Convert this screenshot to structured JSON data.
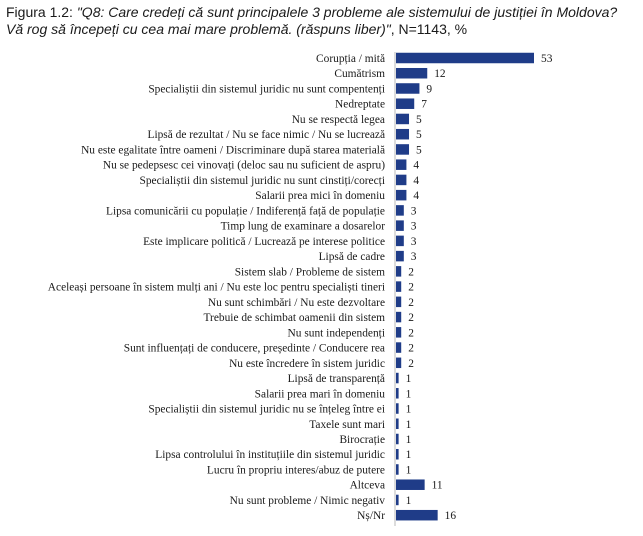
{
  "figure": {
    "label": "Figura 1.2:",
    "question": "\"Q8: Care credeți că sunt principalele 3 probleme ale sistemului de justiției în Moldova? Vă rog să începeți cu cea mai mare problemă. (răspuns liber)\"",
    "suffix": ", N=1143, %"
  },
  "chart_data": {
    "type": "bar",
    "orientation": "horizontal",
    "title": "",
    "xlabel": "",
    "ylabel": "",
    "xlim": [
      0,
      53
    ],
    "grid": false,
    "legend": "none",
    "colors": {
      "bar": "#1f3c88"
    },
    "categories": [
      "Corupția / mită",
      "Cumătrism",
      "Specialiștii din sistemul juridic nu sunt compentenți",
      "Nedreptate",
      "Nu se respectă legea",
      "Lipsă de rezultat / Nu se face nimic / Nu se lucrează",
      "Nu este egalitate între oameni / Discriminare după starea materială",
      "Nu se pedepsesc cei vinovați (deloc sau nu suficient de aspru)",
      "Specialiștii din sistemul juridic nu sunt cinstiți/corecți",
      "Salarii prea mici în domeniu",
      "Lipsa comunicării cu populație / Indiferență față de populație",
      "Timp lung de examinare a dosarelor",
      "Este implicare politică / Lucrează pe interese politice",
      "Lipsă de cadre",
      "Sistem slab / Probleme de sistem",
      "Aceleași persoane în sistem mulți ani / Nu este loc pentru specialiști tineri",
      "Nu sunt schimbări / Nu este dezvoltare",
      "Trebuie de schimbat oamenii din sistem",
      "Nu sunt independenți",
      "Sunt influențați de conducere, președinte / Conducere rea",
      "Nu este încredere în sistem juridic",
      "Lipsă de transparență",
      "Salarii prea mari în domeniu",
      "Specialiștii din sistemul juridic nu se înțeleg între ei",
      "Taxele sunt mari",
      "Birocrație",
      "Lipsa controlului în instituțiile din sistemul juridic",
      "Lucru în propriu interes/abuz de putere",
      "Altceva",
      "Nu sunt probleme / Nimic negativ",
      "Nș/Nr"
    ],
    "values": [
      53,
      12,
      9,
      7,
      5,
      5,
      5,
      4,
      4,
      4,
      3,
      3,
      3,
      3,
      2,
      2,
      2,
      2,
      2,
      2,
      2,
      1,
      1,
      1,
      1,
      1,
      1,
      1,
      11,
      1,
      16
    ]
  }
}
